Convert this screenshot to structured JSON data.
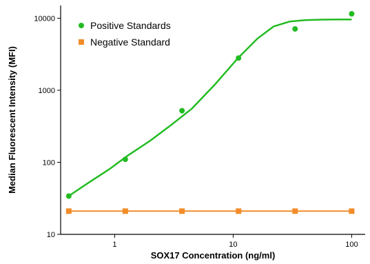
{
  "chart_data": {
    "type": "scatter",
    "xlabel": "SOX17 Concentration (ng/ml)",
    "ylabel": "Median Fluorescent Intensity (MFI)",
    "x_scale": "log",
    "y_scale": "log",
    "xlim": [
      0.35,
      130
    ],
    "ylim": [
      10,
      15000
    ],
    "x_ticks": [
      1,
      10,
      100
    ],
    "x_tick_labels": [
      "1",
      "10",
      "100"
    ],
    "y_ticks": [
      10,
      100,
      1000,
      10000
    ],
    "y_tick_labels": [
      "10",
      "100",
      "1000",
      "10000"
    ],
    "grid": false,
    "legend_position": "top-left",
    "series": [
      {
        "name": "Positive Standards",
        "color": "#22bb22",
        "marker": "circle",
        "x": [
          0.41,
          1.23,
          3.7,
          11.1,
          33.3,
          100
        ],
        "y": [
          34,
          110,
          520,
          2800,
          7100,
          11500
        ],
        "fit_curve": {
          "x": [
            0.41,
            0.6,
            0.9,
            1.3,
            2,
            3,
            4.5,
            7,
            11,
            16,
            22,
            30,
            40,
            55,
            75,
            100
          ],
          "y": [
            34,
            52,
            80,
            125,
            200,
            330,
            560,
            1200,
            2800,
            5200,
            7700,
            9000,
            9400,
            9550,
            9600,
            9620
          ]
        }
      },
      {
        "name": "Negative Standard",
        "color": "#f28c28",
        "marker": "square",
        "x": [
          0.41,
          1.23,
          3.7,
          11.1,
          33.3,
          100
        ],
        "y": [
          21,
          21,
          21,
          21,
          21,
          21
        ]
      }
    ]
  }
}
